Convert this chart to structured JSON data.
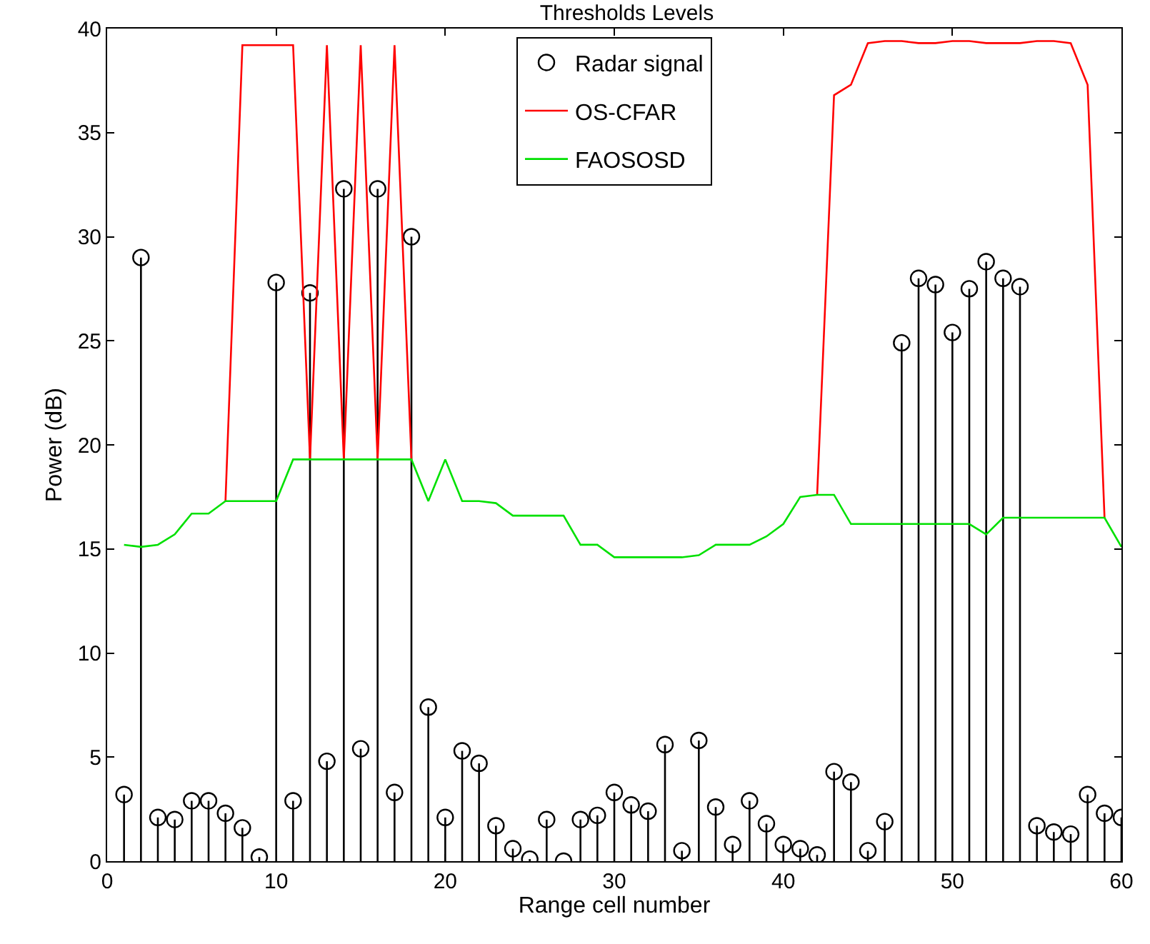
{
  "chart_data": {
    "type": "line",
    "title": "Thresholds Levels",
    "xlabel": "Range cell number",
    "ylabel": "Power (dB)",
    "x": [
      1,
      2,
      3,
      4,
      5,
      6,
      7,
      8,
      9,
      10,
      11,
      12,
      13,
      14,
      15,
      16,
      17,
      18,
      19,
      20,
      21,
      22,
      23,
      24,
      25,
      26,
      27,
      28,
      29,
      30,
      31,
      32,
      33,
      34,
      35,
      36,
      37,
      38,
      39,
      40,
      41,
      42,
      43,
      44,
      45,
      46,
      47,
      48,
      49,
      50,
      51,
      52,
      53,
      54,
      55,
      56,
      57,
      58,
      59,
      60
    ],
    "series": [
      {
        "name": "Radar signal",
        "type": "lollipop",
        "color": "#000000",
        "marker": "circle",
        "values": [
          3.2,
          29.0,
          2.1,
          2.0,
          2.9,
          2.9,
          2.3,
          1.6,
          0.2,
          27.8,
          2.9,
          27.3,
          4.8,
          32.3,
          5.4,
          32.3,
          3.3,
          30.0,
          7.4,
          2.1,
          5.3,
          4.7,
          1.7,
          0.6,
          0.1,
          2.0,
          0.0,
          2.0,
          2.2,
          3.3,
          2.7,
          2.4,
          5.6,
          0.5,
          5.8,
          2.6,
          0.8,
          2.9,
          1.8,
          0.8,
          0.6,
          0.3,
          4.3,
          3.8,
          0.5,
          1.9,
          24.9,
          28.0,
          27.7,
          25.4,
          27.5,
          28.8,
          28.0,
          27.6,
          1.7,
          1.4,
          1.3,
          3.2,
          2.3,
          2.1
        ]
      },
      {
        "name": "OS-CFAR",
        "color": "#ff0000",
        "values": [
          null,
          null,
          null,
          null,
          null,
          null,
          17.3,
          39.2,
          39.2,
          39.2,
          39.2,
          19.3,
          39.2,
          19.3,
          39.2,
          19.3,
          39.2,
          19.3,
          null,
          null,
          null,
          null,
          null,
          null,
          null,
          null,
          null,
          null,
          null,
          null,
          null,
          null,
          null,
          null,
          null,
          null,
          null,
          null,
          null,
          null,
          null,
          17.6,
          36.8,
          37.3,
          39.3,
          39.4,
          39.4,
          39.3,
          39.3,
          39.4,
          39.4,
          39.3,
          39.3,
          39.3,
          39.4,
          39.4,
          39.3,
          37.3,
          16.5,
          null
        ]
      },
      {
        "name": "FAOSOSD",
        "color": "#00e000",
        "values": [
          15.2,
          15.1,
          15.2,
          15.7,
          16.7,
          16.7,
          17.3,
          17.3,
          17.3,
          17.3,
          19.3,
          19.3,
          19.3,
          19.3,
          19.3,
          19.3,
          19.3,
          19.3,
          17.3,
          19.3,
          17.3,
          17.3,
          17.2,
          16.6,
          16.6,
          16.6,
          16.6,
          15.2,
          15.2,
          14.6,
          14.6,
          14.6,
          14.6,
          14.6,
          14.7,
          15.2,
          15.2,
          15.2,
          15.6,
          16.2,
          17.5,
          17.6,
          17.6,
          16.2,
          16.2,
          16.2,
          16.2,
          16.2,
          16.2,
          16.2,
          16.2,
          15.7,
          16.5,
          16.5,
          16.5,
          16.5,
          16.5,
          16.5,
          16.5,
          15.1
        ]
      }
    ],
    "xlim": [
      0,
      60
    ],
    "xticks": [
      0,
      10,
      20,
      30,
      40,
      50,
      60
    ],
    "ylim": [
      0,
      40
    ],
    "yticks": [
      0,
      5,
      10,
      15,
      20,
      25,
      30,
      35,
      40
    ],
    "grid": false,
    "legend": "top"
  }
}
